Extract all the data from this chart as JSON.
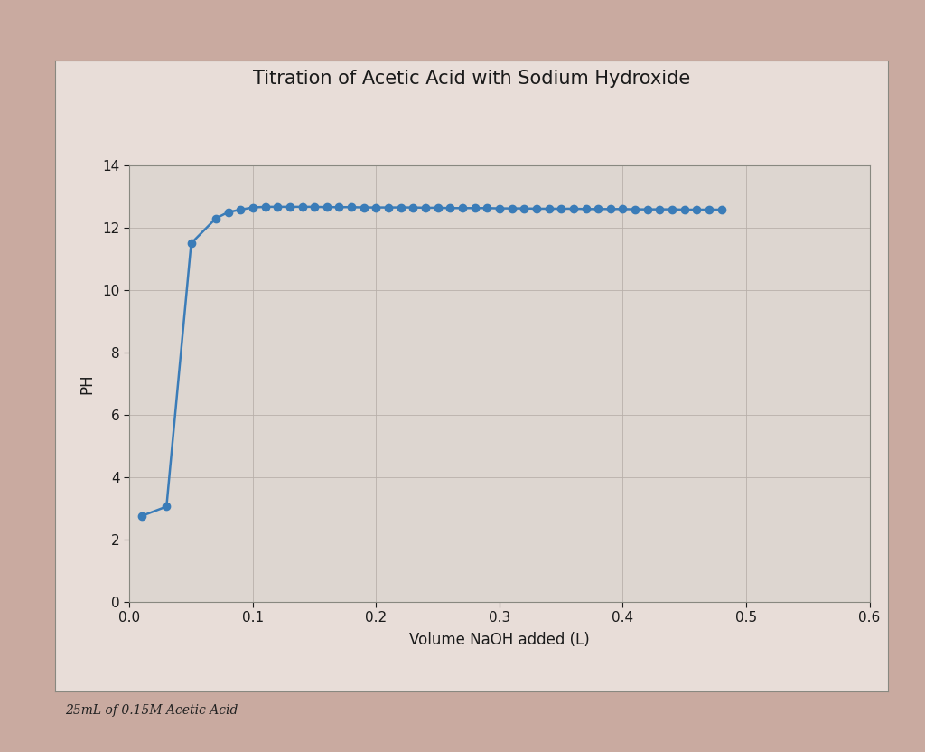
{
  "title": "Titration of Acetic Acid with Sodium Hydroxide",
  "xlabel": "Volume NaOH added (L)",
  "ylabel": "PH",
  "annotation": "25mL of 0.15M Acetic Acid",
  "line_color": "#3A7CB8",
  "marker": "o",
  "marker_size": 6,
  "linewidth": 1.8,
  "xlim": [
    0,
    0.6
  ],
  "ylim": [
    0,
    14
  ],
  "xticks": [
    0,
    0.1,
    0.2,
    0.3,
    0.4,
    0.5,
    0.6
  ],
  "yticks": [
    0,
    2,
    4,
    6,
    8,
    10,
    12,
    14
  ],
  "outer_bg": "#c9aaa0",
  "paper_bg": "#e8ddd8",
  "plot_bg": "#ddd6d0",
  "grid_color": "#b8b0aa",
  "spine_color": "#888880",
  "title_color": "#1a1a1a",
  "tick_color": "#1a1a1a",
  "label_color": "#1a1a1a",
  "x": [
    0.01,
    0.03,
    0.05,
    0.07,
    0.08,
    0.09,
    0.1,
    0.11,
    0.12,
    0.13,
    0.14,
    0.15,
    0.16,
    0.17,
    0.18,
    0.19,
    0.2,
    0.21,
    0.22,
    0.23,
    0.24,
    0.25,
    0.26,
    0.27,
    0.28,
    0.29,
    0.3,
    0.31,
    0.32,
    0.33,
    0.34,
    0.35,
    0.36,
    0.37,
    0.38,
    0.39,
    0.4,
    0.41,
    0.42,
    0.43,
    0.44,
    0.45,
    0.46,
    0.47,
    0.48
  ],
  "y": [
    2.75,
    3.05,
    11.5,
    12.3,
    12.5,
    12.58,
    12.65,
    12.67,
    12.67,
    12.67,
    12.67,
    12.67,
    12.66,
    12.66,
    12.66,
    12.65,
    12.65,
    12.65,
    12.65,
    12.65,
    12.64,
    12.64,
    12.63,
    12.63,
    12.63,
    12.63,
    12.62,
    12.62,
    12.62,
    12.61,
    12.61,
    12.61,
    12.61,
    12.6,
    12.6,
    12.6,
    12.6,
    12.59,
    12.59,
    12.59,
    12.59,
    12.58,
    12.58,
    12.58,
    12.58
  ]
}
